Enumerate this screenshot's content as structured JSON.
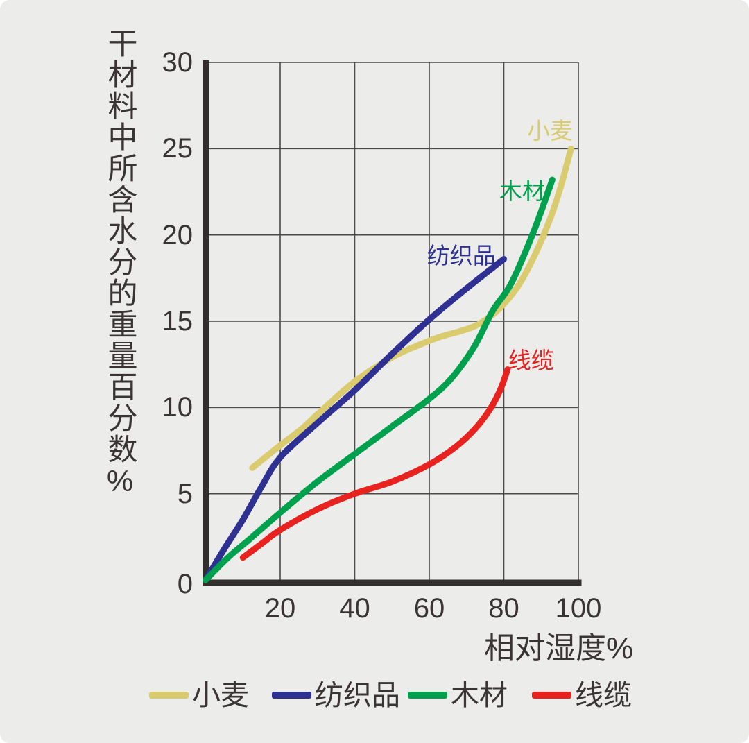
{
  "chart_data": {
    "type": "line",
    "title": "",
    "xlabel": "相对湿度%",
    "ylabel": "干材料中所含水分的重量百分数%",
    "xlim": [
      0,
      100
    ],
    "ylim": [
      0,
      30
    ],
    "xticks": [
      20,
      40,
      60,
      80,
      100
    ],
    "yticks": [
      0,
      5,
      10,
      15,
      20,
      25,
      30
    ],
    "grid": true,
    "legend_position": "bottom",
    "axis_color": "#332e2e",
    "grid_color": "#4c4a49",
    "text_color": "#3a3434",
    "background_color": "#ececeb",
    "series": [
      {
        "id": "wheat",
        "name": "小麦",
        "color": "#d9cb6e",
        "label_pos": [
          92.4,
          26.0
        ],
        "points": [
          [
            12.5,
            6.5
          ],
          [
            20,
            7.8
          ],
          [
            26,
            8.8
          ],
          [
            30,
            9.6
          ],
          [
            40,
            11.5
          ],
          [
            50,
            12.9
          ],
          [
            57,
            13.6
          ],
          [
            63,
            14.1
          ],
          [
            68,
            14.4
          ],
          [
            72,
            14.7
          ],
          [
            76,
            15.2
          ],
          [
            80,
            16.0
          ],
          [
            84,
            17.1
          ],
          [
            88,
            18.7
          ],
          [
            92,
            20.7
          ],
          [
            95,
            22.6
          ],
          [
            98,
            25.0
          ]
        ]
      },
      {
        "id": "textiles",
        "name": "纺织品",
        "color": "#2e3192",
        "label_pos": [
          68.6,
          18.8
        ],
        "points": [
          [
            0,
            0
          ],
          [
            5,
            1.8
          ],
          [
            10,
            3.5
          ],
          [
            15,
            5.4
          ],
          [
            20,
            7.1
          ],
          [
            30,
            9.1
          ],
          [
            40,
            11.0
          ],
          [
            50,
            13.1
          ],
          [
            60,
            15.1
          ],
          [
            70,
            16.9
          ],
          [
            80,
            18.6
          ]
        ]
      },
      {
        "id": "wood",
        "name": "木材",
        "color": "#00a14e",
        "label_pos": [
          84.9,
          22.5
        ],
        "points": [
          [
            0,
            0
          ],
          [
            6,
            1.3
          ],
          [
            12,
            2.4
          ],
          [
            20,
            3.9
          ],
          [
            30,
            5.7
          ],
          [
            40,
            7.3
          ],
          [
            50,
            8.9
          ],
          [
            60,
            10.5
          ],
          [
            66,
            11.7
          ],
          [
            72,
            13.5
          ],
          [
            77,
            15.6
          ],
          [
            82,
            17.2
          ],
          [
            88,
            20.2
          ],
          [
            93,
            23.2
          ]
        ]
      },
      {
        "id": "cable",
        "name": "线缆",
        "color": "#e8221e",
        "label_pos": [
          87.3,
          12.7
        ],
        "points": [
          [
            10,
            1.3
          ],
          [
            15,
            2.1
          ],
          [
            20,
            2.9
          ],
          [
            30,
            4.1
          ],
          [
            40,
            5.0
          ],
          [
            50,
            5.7
          ],
          [
            60,
            6.7
          ],
          [
            67,
            7.7
          ],
          [
            72,
            8.7
          ],
          [
            76,
            9.8
          ],
          [
            79,
            11.0
          ],
          [
            81,
            12.2
          ]
        ]
      }
    ]
  }
}
